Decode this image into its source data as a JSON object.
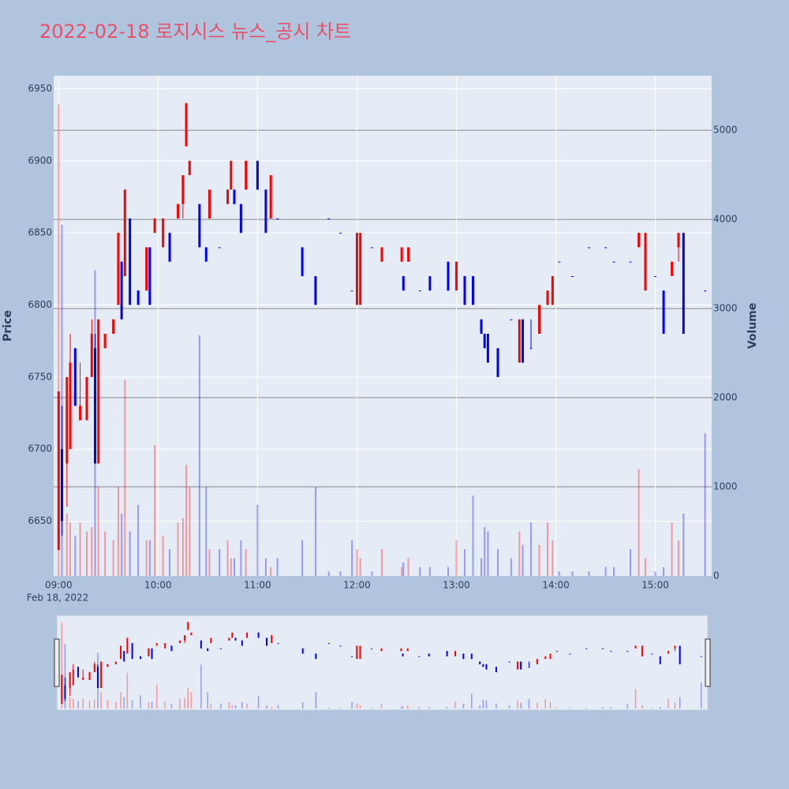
{
  "chart_data": {
    "type": "candlestick",
    "title": "2022-02-18 로지시스 뉴스_공시 차트",
    "y_label": "Price",
    "y2_label": "Volume",
    "x_date_label": "Feb 18, 2022",
    "increasing_color": "red",
    "decreasing_color": "blue",
    "x": [
      "09:00",
      "09:02",
      "09:05",
      "09:07",
      "09:10",
      "09:13",
      "09:17",
      "09:20",
      "09:22",
      "09:24",
      "09:28",
      "09:33",
      "09:36",
      "09:38",
      "09:40",
      "09:43",
      "09:48",
      "09:53",
      "09:55",
      "09:58",
      "10:03",
      "10:07",
      "10:12",
      "10:15",
      "10:17",
      "10:19",
      "10:25",
      "10:29",
      "10:31",
      "10:37",
      "10:42",
      "10:44",
      "10:46",
      "10:50",
      "10:53",
      "11:00",
      "11:05",
      "11:08",
      "11:12",
      "11:27",
      "11:35",
      "11:43",
      "11:50",
      "11:57",
      "12:00",
      "12:02",
      "12:09",
      "12:15",
      "12:27",
      "12:28",
      "12:31",
      "12:38",
      "12:44",
      "12:55",
      "13:00",
      "13:05",
      "13:10",
      "13:15",
      "13:17",
      "13:19",
      "13:25",
      "13:33",
      "13:38",
      "13:40",
      "13:45",
      "13:50",
      "13:55",
      "13:58",
      "14:02",
      "14:10",
      "14:20",
      "14:30",
      "14:35",
      "14:45",
      "14:50",
      "14:54",
      "15:00",
      "15:05",
      "15:10",
      "15:14",
      "15:17",
      "15:30"
    ],
    "open": [
      6630,
      6700,
      6690,
      6700,
      6770,
      6720,
      6720,
      6750,
      6770,
      6690,
      6770,
      6780,
      6800,
      6830,
      6820,
      6860,
      6810,
      6810,
      6840,
      6850,
      6840,
      6850,
      6860,
      6870,
      6910,
      6890,
      6870,
      6840,
      6860,
      6840,
      6870,
      6880,
      6880,
      6870,
      6880,
      6900,
      6880,
      6860,
      6860,
      6840,
      6820,
      6860,
      6850,
      6810,
      6800,
      6800,
      6840,
      6830,
      6830,
      6820,
      6830,
      6810,
      6820,
      6830,
      6810,
      6820,
      6820,
      6790,
      6780,
      6780,
      6770,
      6790,
      6760,
      6790,
      6770,
      6780,
      6800,
      6800,
      6830,
      6820,
      6840,
      6840,
      6830,
      6830,
      6840,
      6810,
      6820,
      6810,
      6820,
      6840,
      6850,
      6810
    ],
    "high": [
      6740,
      6730,
      6750,
      6780,
      6770,
      6760,
      6750,
      6790,
      6780,
      6790,
      6780,
      6790,
      6850,
      6830,
      6880,
      6860,
      6810,
      6840,
      6840,
      6860,
      6860,
      6850,
      6870,
      6890,
      6940,
      6900,
      6870,
      6840,
      6880,
      6840,
      6880,
      6900,
      6880,
      6870,
      6900,
      6900,
      6880,
      6890,
      6860,
      6840,
      6820,
      6860,
      6850,
      6810,
      6850,
      6850,
      6840,
      6840,
      6840,
      6820,
      6840,
      6810,
      6820,
      6830,
      6830,
      6820,
      6820,
      6790,
      6780,
      6780,
      6770,
      6790,
      6790,
      6790,
      6790,
      6800,
      6810,
      6820,
      6830,
      6820,
      6840,
      6840,
      6830,
      6830,
      6850,
      6850,
      6820,
      6810,
      6830,
      6850,
      6850,
      6810
    ],
    "low": [
      6630,
      6640,
      6660,
      6700,
      6730,
      6720,
      6720,
      6750,
      6690,
      6690,
      6770,
      6780,
      6800,
      6790,
      6820,
      6800,
      6800,
      6810,
      6800,
      6850,
      6840,
      6830,
      6860,
      6860,
      6910,
      6890,
      6840,
      6830,
      6860,
      6840,
      6870,
      6880,
      6870,
      6850,
      6880,
      6880,
      6850,
      6860,
      6860,
      6820,
      6800,
      6860,
      6850,
      6810,
      6800,
      6800,
      6840,
      6830,
      6830,
      6810,
      6830,
      6810,
      6810,
      6810,
      6810,
      6800,
      6800,
      6780,
      6770,
      6760,
      6750,
      6790,
      6760,
      6760,
      6770,
      6780,
      6800,
      6800,
      6830,
      6820,
      6840,
      6840,
      6830,
      6830,
      6840,
      6810,
      6820,
      6780,
      6820,
      6830,
      6780,
      6810
    ],
    "close": [
      6740,
      6650,
      6750,
      6760,
      6730,
      6730,
      6750,
      6780,
      6690,
      6790,
      6780,
      6790,
      6850,
      6790,
      6880,
      6800,
      6800,
      6840,
      6800,
      6860,
      6860,
      6830,
      6870,
      6890,
      6940,
      6900,
      6840,
      6830,
      6880,
      6840,
      6880,
      6900,
      6870,
      6850,
      6900,
      6880,
      6850,
      6890,
      6860,
      6820,
      6800,
      6860,
      6850,
      6810,
      6850,
      6850,
      6840,
      6840,
      6840,
      6810,
      6840,
      6810,
      6810,
      6810,
      6830,
      6800,
      6800,
      6780,
      6770,
      6760,
      6750,
      6790,
      6790,
      6760,
      6770,
      6800,
      6810,
      6820,
      6830,
      6820,
      6840,
      6840,
      6830,
      6830,
      6850,
      6850,
      6820,
      6780,
      6830,
      6850,
      6780,
      6810
    ],
    "volume": [
      5290,
      3940,
      700,
      600,
      450,
      600,
      500,
      550,
      3430,
      1000,
      500,
      400,
      1000,
      700,
      2200,
      500,
      800,
      400,
      400,
      1470,
      450,
      300,
      600,
      650,
      1250,
      1000,
      2700,
      1000,
      300,
      300,
      400,
      200,
      200,
      400,
      300,
      800,
      200,
      100,
      200,
      400,
      1000,
      50,
      50,
      400,
      300,
      200,
      50,
      300,
      100,
      150,
      200,
      100,
      100,
      100,
      400,
      300,
      900,
      200,
      550,
      500,
      300,
      200,
      500,
      350,
      600,
      350,
      600,
      400,
      50,
      50,
      50,
      100,
      100,
      300,
      1200,
      200,
      50,
      100,
      600,
      400,
      700,
      1600
    ],
    "xlim": [
      "08:57",
      "15:34"
    ],
    "xticks": [
      "09:00",
      "10:00",
      "11:00",
      "12:00",
      "13:00",
      "14:00",
      "15:00"
    ],
    "ylim": [
      6612,
      6959
    ],
    "yticks": [
      6650,
      6700,
      6750,
      6800,
      6850,
      6900,
      6950
    ],
    "y2lim": [
      0,
      5612
    ],
    "y2ticks": [
      0,
      1000,
      2000,
      3000,
      4000,
      5000
    ],
    "rangeslider": true
  }
}
